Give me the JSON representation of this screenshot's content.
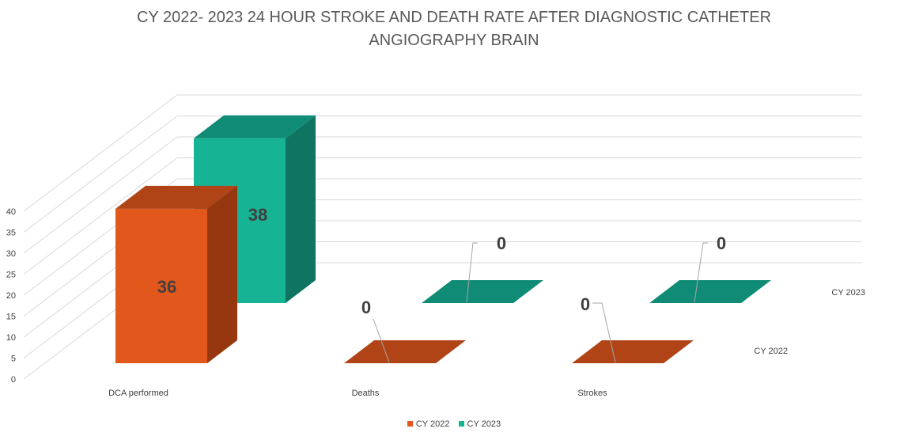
{
  "colors": {
    "cy2022_front": "#E2571B",
    "cy2022_top": "#B04417",
    "cy2022_side": "#96370F",
    "cy2023_front": "#17B395",
    "cy2023_top": "#108C76",
    "cy2023_side": "#0F7561",
    "grid": "#D9D9D9",
    "text": "#404040",
    "label_dark": "#3F3F3F"
  },
  "chart_data": {
    "type": "bar",
    "subtype": "3d-column",
    "title_line1": "CY 2022- 2023 24 HOUR STROKE AND DEATH RATE AFTER DIAGNOSTIC CATHETER",
    "title_line2": "ANGIOGRAPHY BRAIN",
    "categories": [
      "DCA performed",
      "Deaths",
      "Strokes"
    ],
    "series": [
      {
        "name": "CY 2022",
        "values": [
          36,
          0,
          0
        ]
      },
      {
        "name": "CY 2023",
        "values": [
          38,
          0,
          0
        ]
      }
    ],
    "data_labels": [
      [
        "36",
        "0",
        "0"
      ],
      [
        "38",
        "0",
        "0"
      ]
    ],
    "y_ticks": [
      "0",
      "5",
      "10",
      "15",
      "20",
      "25",
      "30",
      "35",
      "40"
    ],
    "ylim": [
      0,
      40
    ],
    "grid": true,
    "legend_position": "bottom"
  }
}
